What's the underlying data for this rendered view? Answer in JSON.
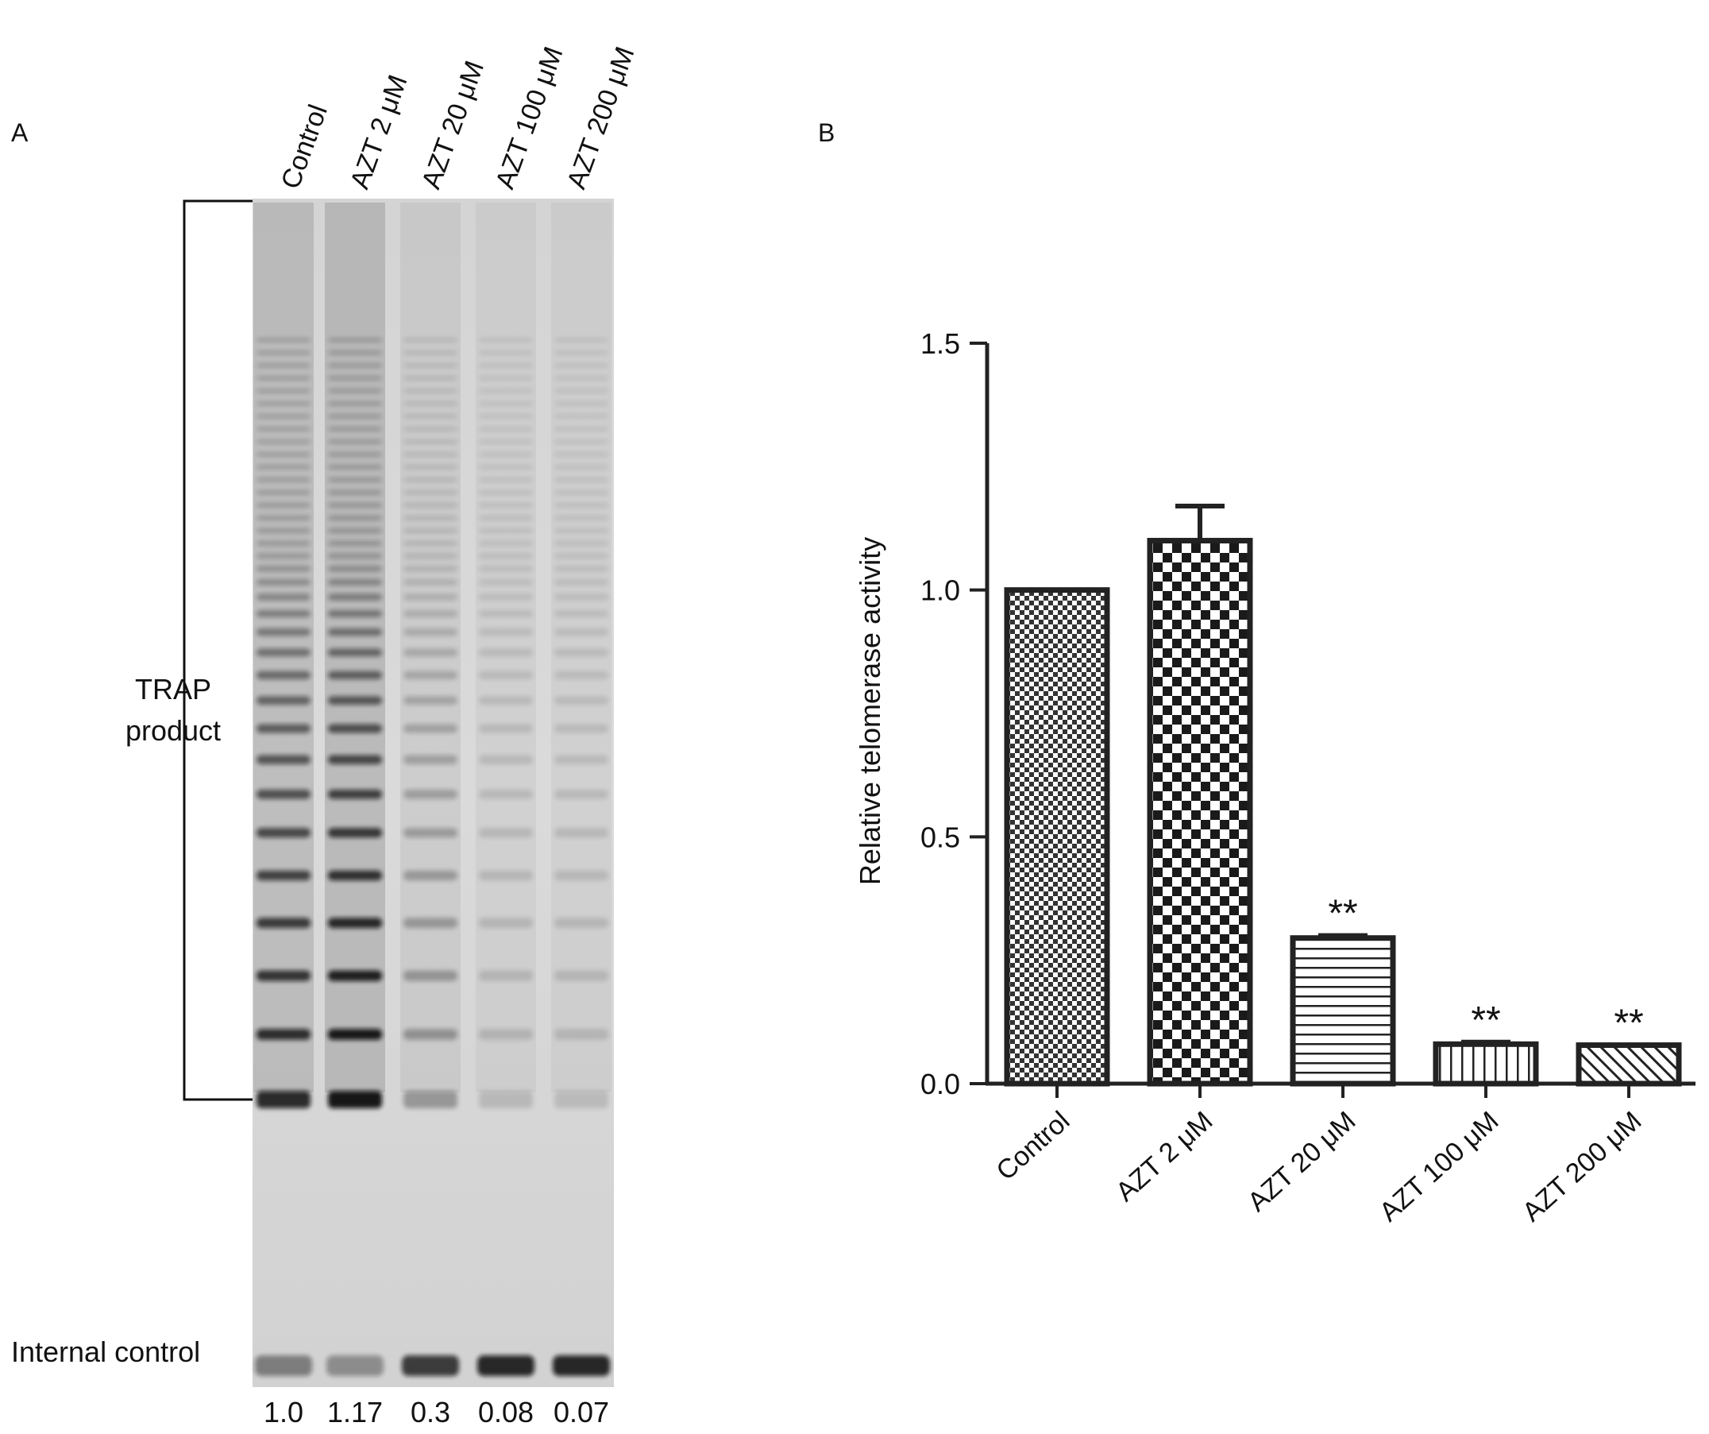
{
  "panel_a": {
    "label": "A",
    "lanes": [
      "Control",
      "AZT 2 μM",
      "AZT 20 μM",
      "AZT 100 μM",
      "AZT 200 μM"
    ],
    "lane_values": [
      "1.0",
      "1.17",
      "0.3",
      "0.08",
      "0.07"
    ],
    "trap_label_line1": "TRAP",
    "trap_label_line2": "product",
    "internal_control_label": "Internal control"
  },
  "panel_b": {
    "label": "B"
  },
  "chart_data": {
    "type": "bar",
    "categories": [
      "Control",
      "AZT 2 μM",
      "AZT 20 μM",
      "AZT 100 μM",
      "AZT 200 μM"
    ],
    "values": [
      1.0,
      1.1,
      0.295,
      0.08,
      0.078
    ],
    "errors": [
      0.0,
      0.07,
      0.005,
      0.004,
      0.0
    ],
    "significance": [
      "",
      "",
      "**",
      "**",
      "**"
    ],
    "patterns": [
      "fine-dots",
      "checker",
      "horizontal-lines",
      "vertical-lines",
      "diagonal-lines"
    ],
    "ylabel": "Relative telomerase activity",
    "xlabel": "",
    "ylim": [
      0,
      1.5
    ],
    "yticks": [
      "0.0",
      "0.5",
      "1.0",
      "1.5"
    ],
    "grid": false,
    "bar_color": "#222222"
  }
}
